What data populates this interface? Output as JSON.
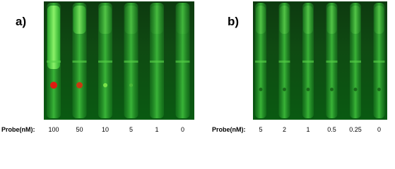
{
  "panels": [
    {
      "label": "a)",
      "axis_label": "Probe(nM):",
      "lanes": [
        "100",
        "50",
        "10",
        "5",
        "1",
        "0"
      ]
    },
    {
      "label": "b)",
      "axis_label": "Probe(nM):",
      "lanes": [
        "5",
        "2",
        "1",
        "0.5",
        "0.25",
        "0"
      ]
    }
  ]
}
